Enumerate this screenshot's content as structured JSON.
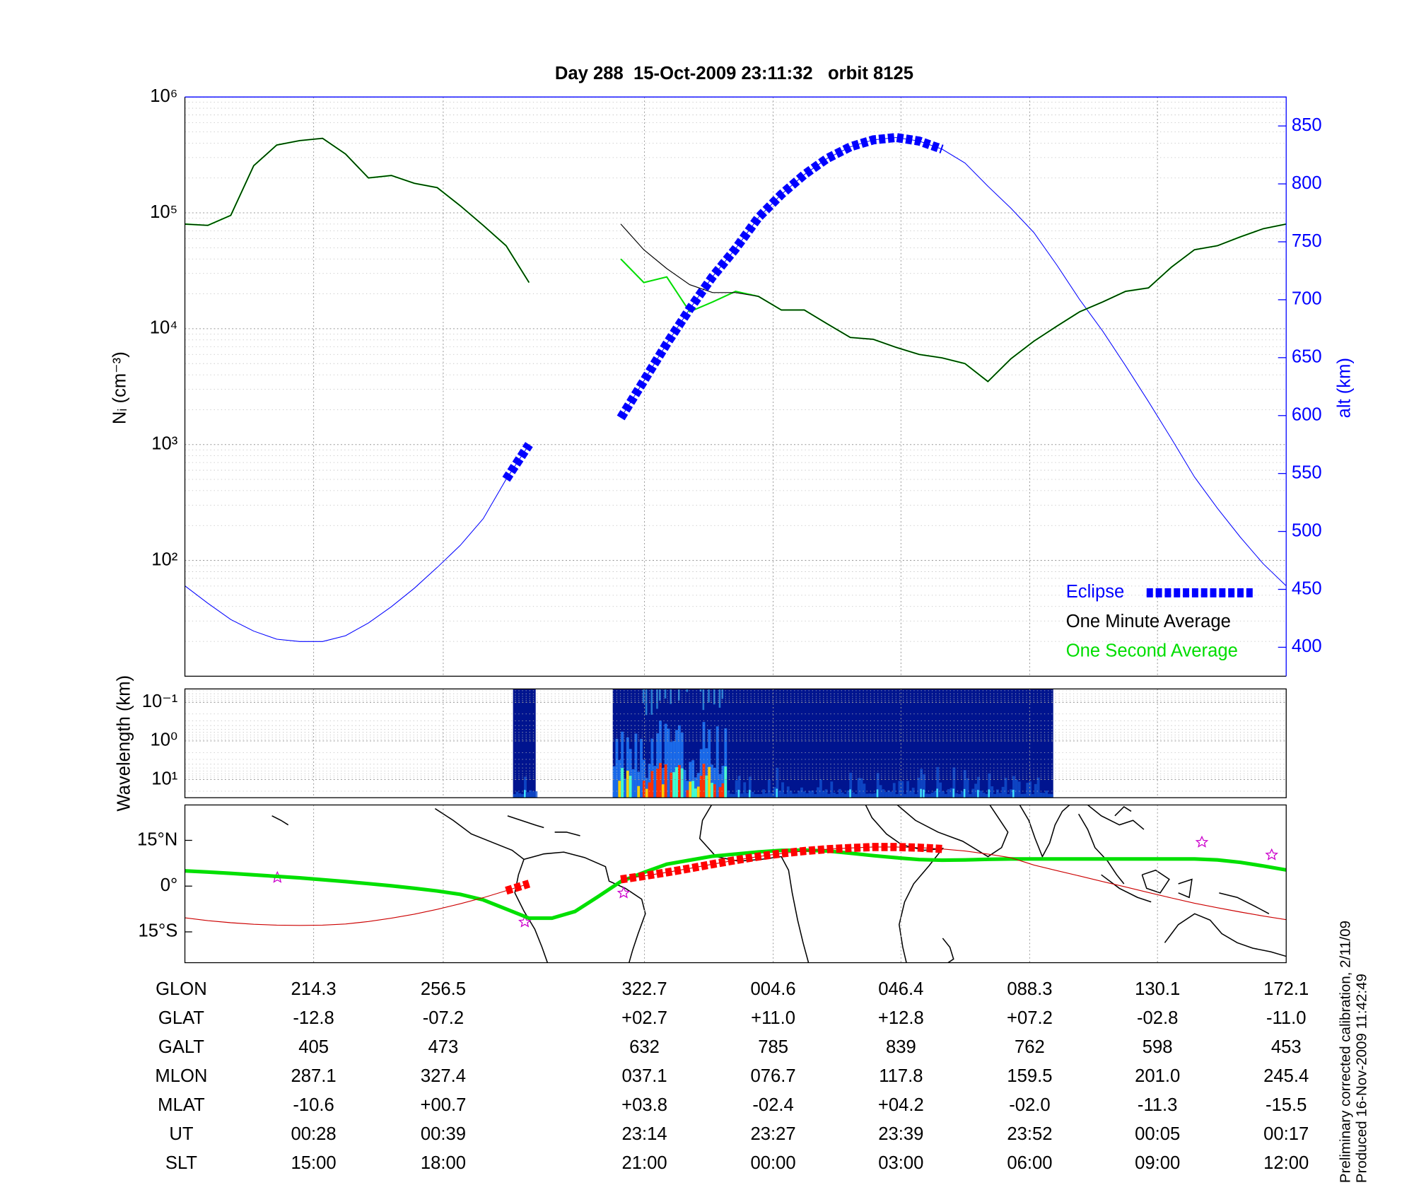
{
  "chart_data": [
    {
      "type": "line",
      "title": "Day 288  15-Oct-2009 23:11:32   orbit 8125",
      "ylabel": "Nᵢ (cm⁻³)",
      "y2label": "alt (km)",
      "yscale": "log",
      "ylim": [
        10,
        1000000
      ],
      "yticks": [
        {
          "value": 100,
          "label": "10²"
        },
        {
          "value": 1000,
          "label": "10³"
        },
        {
          "value": 10000,
          "label": "10⁴"
        },
        {
          "value": 100000,
          "label": "10⁵"
        },
        {
          "value": 1000000,
          "label": "10⁶"
        }
      ],
      "y2lim": [
        375,
        875
      ],
      "y2ticks": [
        400,
        450,
        500,
        550,
        600,
        650,
        700,
        750,
        800,
        850
      ],
      "grid": true,
      "legend": "lower right",
      "series": [
        {
          "color": "#0000ff",
          "axis": "y2",
          "values": [
            453,
            438,
            424,
            414,
            407,
            405,
            405,
            410,
            421,
            435,
            451,
            469,
            488,
            511,
            545,
            575,
            null,
            null,
            null,
            598,
            630,
            662,
            692,
            720,
            744,
            771,
            791,
            808,
            822,
            832,
            838,
            840,
            837,
            830,
            818,
            798,
            779,
            758,
            730,
            700,
            673,
            643,
            612,
            580,
            547,
            520,
            495,
            472,
            453
          ]
        },
        {
          "name": "Eclipse",
          "color": "#0000ff",
          "axis": "y2",
          "style": "dashed",
          "values": [
            null,
            null,
            null,
            null,
            null,
            null,
            null,
            null,
            null,
            null,
            null,
            null,
            null,
            null,
            545,
            575,
            null,
            null,
            null,
            598,
            630,
            662,
            692,
            720,
            744,
            771,
            791,
            808,
            822,
            832,
            838,
            840,
            837,
            830,
            null,
            null,
            null,
            null,
            null,
            null,
            null,
            null,
            null,
            null,
            null,
            null,
            null,
            null,
            null
          ]
        },
        {
          "name": "One Minute Average",
          "color": "#000000",
          "values": [
            80000,
            78000,
            95000,
            255000,
            385000,
            420000,
            440000,
            322000,
            200000,
            210000,
            180000,
            165000,
            115000,
            78000,
            52000,
            25000,
            null,
            null,
            null,
            80000,
            48000,
            33000,
            24000,
            20500,
            20500,
            19000,
            14500,
            14500,
            11000,
            8400,
            8100,
            6900,
            6000,
            5600,
            5000,
            3500,
            5500,
            7800,
            10500,
            14000,
            17000,
            21000,
            22500,
            34000,
            48000,
            52000,
            62000,
            73000,
            80000
          ]
        },
        {
          "name": "One Second Average",
          "color": "#00dd00",
          "values": [
            80000,
            78000,
            95000,
            255000,
            385000,
            420000,
            440000,
            322000,
            200000,
            210000,
            180000,
            165000,
            115000,
            78000,
            52000,
            25000,
            null,
            null,
            null,
            40000,
            25000,
            28000,
            14000,
            17000,
            21000,
            19000,
            14500,
            14500,
            11000,
            8400,
            8100,
            6900,
            6000,
            5600,
            5000,
            3500,
            5500,
            7800,
            10500,
            14000,
            17000,
            21000,
            22500,
            34000,
            48000,
            52000,
            62000,
            73000,
            80000
          ]
        }
      ]
    },
    {
      "type": "spectrogram",
      "ylabel": "Wavelength (km)",
      "yscale": "log",
      "ylim": [
        29.5,
        0.045
      ],
      "yticks": [
        {
          "value": 0.1,
          "label": "10⁻¹"
        },
        {
          "value": 1,
          "label": "10⁰"
        },
        {
          "value": 10,
          "label": "10¹"
        }
      ],
      "grid": true
    },
    {
      "type": "map",
      "ylim": [
        -25.1,
        26.6
      ],
      "yticks": [
        {
          "value": 15,
          "label": "15°N"
        },
        {
          "value": 0,
          "label": "0°"
        },
        {
          "value": -15,
          "label": "15°S"
        }
      ],
      "series": [
        {
          "color": "#00e000",
          "values": [
            5.0,
            4.6,
            4.2,
            3.7,
            3.2,
            2.7,
            2.1,
            1.5,
            0.8,
            0.1,
            -0.7,
            -1.6,
            -2.7,
            -4.5,
            -7.5,
            -10.5,
            -10.5,
            -8.3,
            -3.5,
            1.5,
            4.5,
            7.2,
            8.5,
            9.8,
            10.5,
            11.2,
            11.7,
            11.8,
            11.5,
            10.8,
            10.0,
            9.3,
            8.7,
            8.5,
            8.6,
            8.8,
            8.9,
            8.9,
            8.9,
            8.9,
            8.9,
            8.9,
            8.9,
            8.9,
            8.9,
            8.6,
            7.8,
            6.6,
            5.3
          ]
        },
        {
          "color": "#cc0000",
          "values": [
            -10.4,
            -11.3,
            -12.0,
            -12.5,
            -12.8,
            -12.9,
            -12.8,
            -12.4,
            -11.6,
            -10.5,
            -9.2,
            -7.6,
            -5.8,
            -3.8,
            -1.5,
            0.8,
            null,
            null,
            null,
            2.2,
            3.3,
            4.5,
            5.8,
            7.2,
            8.5,
            9.7,
            10.7,
            11.5,
            12.1,
            12.5,
            12.8,
            12.8,
            12.6,
            12.2,
            11.5,
            10.5,
            9.3,
            6.9,
            5.1,
            3.3,
            1.5,
            -0.3,
            -2.1,
            -3.9,
            -5.6,
            -7.1,
            -8.5,
            -9.8,
            -11.0
          ]
        },
        {
          "color": "#ff0000",
          "style": "dashed",
          "values": [
            null,
            null,
            null,
            null,
            null,
            null,
            null,
            null,
            null,
            null,
            null,
            null,
            null,
            null,
            -1.5,
            0.8,
            null,
            null,
            null,
            2.2,
            3.3,
            4.5,
            5.8,
            7.2,
            8.5,
            9.7,
            10.7,
            11.5,
            12.1,
            12.5,
            12.8,
            12.8,
            12.6,
            12.2,
            null,
            null,
            null,
            null,
            null,
            null,
            null,
            null,
            null,
            null,
            null,
            null,
            null,
            null,
            null
          ]
        }
      ]
    }
  ],
  "table": {
    "rows": [
      [
        "GLON",
        "214.3",
        "256.5",
        "322.7",
        "004.6",
        "046.4",
        "088.3",
        "130.1",
        "172.1"
      ],
      [
        "GLAT",
        "-12.8",
        "-07.2",
        "+02.7",
        "+11.0",
        "+12.8",
        "+07.2",
        "-02.8",
        "-11.0"
      ],
      [
        "GALT",
        "405",
        "473",
        "632",
        "785",
        "839",
        "762",
        "598",
        "453"
      ],
      [
        "MLON",
        "287.1",
        "327.4",
        "037.1",
        "076.7",
        "117.8",
        "159.5",
        "201.0",
        "245.4"
      ],
      [
        "MLAT",
        "-10.6",
        "+00.7",
        "+03.8",
        "-02.4",
        "+04.2",
        "-02.0",
        "-11.3",
        "-15.5"
      ],
      [
        "UT",
        "00:28",
        "00:39",
        "23:14",
        "23:27",
        "23:39",
        "23:52",
        "00:05",
        "00:17"
      ],
      [
        "SLT",
        "15:00",
        "18:00",
        "21:00",
        "00:00",
        "03:00",
        "06:00",
        "09:00",
        "12:00"
      ]
    ]
  },
  "footnotes": [
    "Preliminary corrected calibration, 2/11/09",
    "Produced 16-Nov-2009 11:42:49"
  ]
}
